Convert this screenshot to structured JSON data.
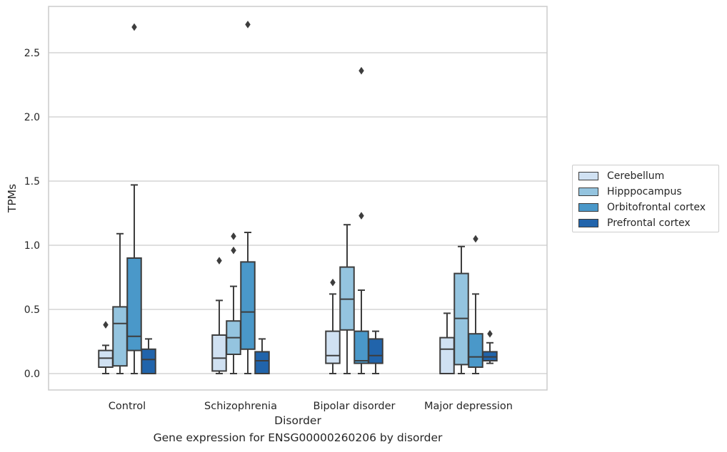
{
  "chart_data": {
    "type": "box",
    "title": "",
    "xlabel": "Disorder",
    "ylabel": "TPMs",
    "ylim": [
      -0.13,
      2.87
    ],
    "yticks": [
      "0.0",
      "0.5",
      "1.0",
      "1.5",
      "2.0",
      "2.5"
    ],
    "categories": [
      "Control",
      "Schizophrenia",
      "Bipolar disorder",
      "Major depression"
    ],
    "grid": "horizontal",
    "legend_position": "right",
    "caption": "Gene expression for ENSG00000260206 by disorder",
    "series": [
      {
        "name": "Cerebellum",
        "color": "#d0e1f2",
        "boxes": [
          {
            "whisker_low": 0.0,
            "q1": 0.05,
            "median": 0.12,
            "q3": 0.18,
            "whisker_high": 0.22,
            "outliers": [
              0.38
            ]
          },
          {
            "whisker_low": 0.0,
            "q1": 0.02,
            "median": 0.12,
            "q3": 0.3,
            "whisker_high": 0.57,
            "outliers": [
              0.88
            ]
          },
          {
            "whisker_low": 0.0,
            "q1": 0.08,
            "median": 0.14,
            "q3": 0.33,
            "whisker_high": 0.62,
            "outliers": [
              0.71
            ]
          },
          {
            "whisker_low": 0.0,
            "q1": 0.0,
            "median": 0.19,
            "q3": 0.28,
            "whisker_high": 0.47,
            "outliers": []
          }
        ]
      },
      {
        "name": "Hipppocampus",
        "color": "#94c4df",
        "boxes": [
          {
            "whisker_low": 0.0,
            "q1": 0.06,
            "median": 0.39,
            "q3": 0.52,
            "whisker_high": 1.09,
            "outliers": []
          },
          {
            "whisker_low": 0.0,
            "q1": 0.15,
            "median": 0.28,
            "q3": 0.41,
            "whisker_high": 0.68,
            "outliers": [
              0.96,
              1.07
            ]
          },
          {
            "whisker_low": 0.0,
            "q1": 0.34,
            "median": 0.58,
            "q3": 0.83,
            "whisker_high": 1.16,
            "outliers": []
          },
          {
            "whisker_low": 0.0,
            "q1": 0.07,
            "median": 0.43,
            "q3": 0.78,
            "whisker_high": 0.99,
            "outliers": []
          }
        ]
      },
      {
        "name": "Orbitofrontal cortex",
        "color": "#4a98c9",
        "boxes": [
          {
            "whisker_low": 0.0,
            "q1": 0.18,
            "median": 0.29,
            "q3": 0.9,
            "whisker_high": 1.47,
            "outliers": [
              2.7
            ]
          },
          {
            "whisker_low": 0.0,
            "q1": 0.19,
            "median": 0.48,
            "q3": 0.87,
            "whisker_high": 1.1,
            "outliers": [
              2.72
            ]
          },
          {
            "whisker_low": 0.0,
            "q1": 0.08,
            "median": 0.1,
            "q3": 0.33,
            "whisker_high": 0.65,
            "outliers": [
              1.23,
              2.36
            ]
          },
          {
            "whisker_low": 0.0,
            "q1": 0.05,
            "median": 0.13,
            "q3": 0.31,
            "whisker_high": 0.62,
            "outliers": [
              1.05
            ]
          }
        ]
      },
      {
        "name": "Prefrontal cortex",
        "color": "#2164ab",
        "boxes": [
          {
            "whisker_low": 0.0,
            "q1": 0.0,
            "median": 0.11,
            "q3": 0.19,
            "whisker_high": 0.27,
            "outliers": []
          },
          {
            "whisker_low": 0.0,
            "q1": 0.0,
            "median": 0.1,
            "q3": 0.17,
            "whisker_high": 0.27,
            "outliers": []
          },
          {
            "whisker_low": 0.0,
            "q1": 0.08,
            "median": 0.14,
            "q3": 0.27,
            "whisker_high": 0.33,
            "outliers": []
          },
          {
            "whisker_low": 0.08,
            "q1": 0.1,
            "median": 0.13,
            "q3": 0.17,
            "whisker_high": 0.24,
            "outliers": [
              0.31
            ]
          }
        ]
      }
    ]
  }
}
